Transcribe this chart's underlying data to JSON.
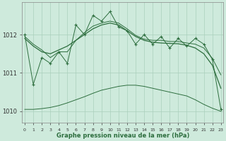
{
  "title": "Graphe pression niveau de la mer (hPa)",
  "bg_color": "#ceeadc",
  "grid_color": "#aacfbc",
  "line_color": "#2d6e3e",
  "x_labels": [
    "0",
    "1",
    "2",
    "3",
    "4",
    "5",
    "6",
    "7",
    "8",
    "9",
    "10",
    "11",
    "12",
    "13",
    "14",
    "15",
    "16",
    "17",
    "18",
    "19",
    "20",
    "21",
    "22",
    "23"
  ],
  "ylim": [
    1009.7,
    1012.85
  ],
  "yticks": [
    1010,
    1011,
    1012
  ],
  "hours": [
    0,
    1,
    2,
    3,
    4,
    5,
    6,
    7,
    8,
    9,
    10,
    11,
    12,
    13,
    14,
    15,
    16,
    17,
    18,
    19,
    20,
    21,
    22,
    23
  ],
  "instant": [
    1012.0,
    1010.7,
    1011.4,
    1011.25,
    1011.55,
    1011.25,
    1012.25,
    1012.0,
    1012.5,
    1012.35,
    1012.6,
    1012.2,
    1012.1,
    1011.75,
    1012.0,
    1011.75,
    1011.95,
    1011.65,
    1011.9,
    1011.7,
    1011.9,
    1011.75,
    1011.35,
    1010.05
  ],
  "smooth": [
    1011.9,
    1011.7,
    1011.55,
    1011.5,
    1011.6,
    1011.7,
    1011.85,
    1012.0,
    1012.15,
    1012.25,
    1012.3,
    1012.25,
    1012.1,
    1011.95,
    1011.85,
    1011.8,
    1011.78,
    1011.77,
    1011.76,
    1011.72,
    1011.65,
    1011.5,
    1011.2,
    1010.6
  ],
  "min_line": [
    1010.05,
    1010.05,
    1010.07,
    1010.1,
    1010.15,
    1010.22,
    1010.3,
    1010.38,
    1010.47,
    1010.55,
    1010.6,
    1010.65,
    1010.68,
    1010.68,
    1010.65,
    1010.6,
    1010.55,
    1010.5,
    1010.45,
    1010.4,
    1010.3,
    1010.18,
    1010.08,
    1010.0
  ],
  "max_line": [
    1011.95,
    1011.75,
    1011.6,
    1011.4,
    1011.55,
    1011.55,
    1011.85,
    1012.05,
    1012.22,
    1012.3,
    1012.35,
    1012.3,
    1012.15,
    1011.98,
    1011.88,
    1011.85,
    1011.85,
    1011.82,
    1011.82,
    1011.78,
    1011.75,
    1011.65,
    1011.38,
    1010.95
  ]
}
